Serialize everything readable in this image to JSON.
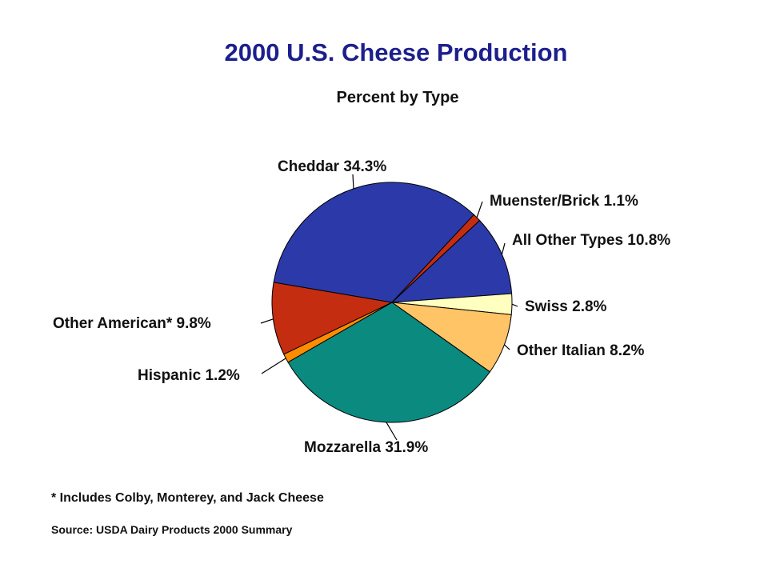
{
  "chart_data": {
    "type": "pie",
    "title": "2000 U.S. Cheese Production",
    "subtitle": "Percent by Type",
    "unit": "%",
    "slices": [
      {
        "label": "Muenster/Brick",
        "value": 1.1,
        "display": "1.1%",
        "color": "#c42d10"
      },
      {
        "label": "All Other Types",
        "value": 10.8,
        "display": "10.8%",
        "color": "#2b3aa8"
      },
      {
        "label": "Swiss",
        "value": 2.8,
        "display": "2.8%",
        "color": "#ffffc0"
      },
      {
        "label": "Other Italian",
        "value": 8.2,
        "display": "8.2%",
        "color": "#ffc466"
      },
      {
        "label": "Mozzarella",
        "value": 31.9,
        "display": "31.9%",
        "color": "#0b8a80"
      },
      {
        "label": "Hispanic",
        "value": 1.2,
        "display": "1.2%",
        "color": "#ff8c00"
      },
      {
        "label": "Other American*",
        "value": 9.8,
        "display": "9.8%",
        "color": "#c42d10"
      },
      {
        "label": "Cheddar",
        "value": 34.3,
        "display": "34.3%",
        "color": "#2b3aa8"
      }
    ]
  },
  "footnote": "* Includes Colby, Monterey, and Jack Cheese",
  "source": "Source: USDA Dairy Products 2000 Summary"
}
